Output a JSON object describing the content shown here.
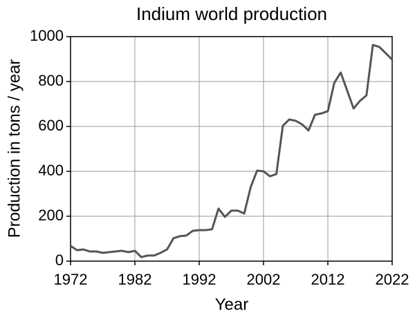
{
  "chart_data": {
    "type": "line",
    "title": "Indium world production",
    "xlabel": "Year",
    "ylabel": "Production in tons / year",
    "x": [
      1972,
      1973,
      1974,
      1975,
      1976,
      1977,
      1978,
      1979,
      1980,
      1981,
      1982,
      1983,
      1984,
      1985,
      1986,
      1987,
      1988,
      1989,
      1990,
      1991,
      1992,
      1993,
      1994,
      1995,
      1996,
      1997,
      1998,
      1999,
      2000,
      2001,
      2002,
      2003,
      2004,
      2005,
      2006,
      2007,
      2008,
      2009,
      2010,
      2011,
      2012,
      2013,
      2014,
      2015,
      2016,
      2017,
      2018,
      2019,
      2020,
      2021,
      2022
    ],
    "series": [
      {
        "color": "#555555",
        "values": [
          68,
          49,
          52,
          43,
          43,
          37,
          40,
          43,
          46,
          40,
          46,
          18,
          25,
          25,
          37,
          52,
          102,
          111,
          114,
          135,
          138,
          138,
          142,
          234,
          197,
          225,
          225,
          212,
          329,
          403,
          400,
          378,
          388,
          603,
          631,
          625,
          609,
          582,
          652,
          658,
          668,
          794,
          840,
          760,
          680,
          714,
          738,
          963,
          954,
          926,
          898
        ]
      }
    ],
    "xlim": [
      1972,
      2022
    ],
    "xticks": [
      1972,
      1982,
      1992,
      2002,
      2012,
      2022
    ],
    "ylim": [
      0,
      1000
    ],
    "yticks": [
      0,
      200,
      400,
      600,
      800,
      1000
    ],
    "grid": true
  }
}
